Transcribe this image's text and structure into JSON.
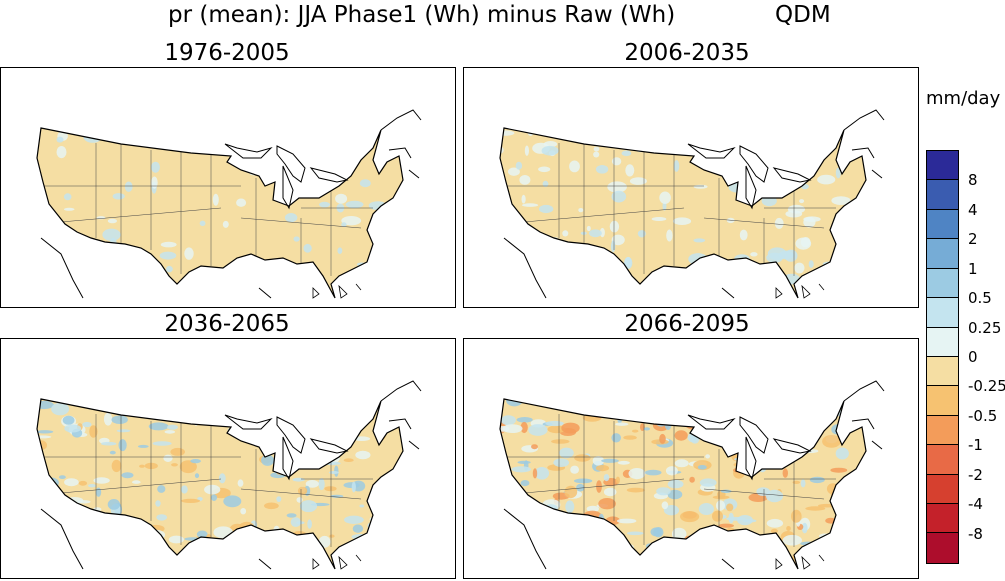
{
  "title": {
    "main": "pr (mean): JJA Phase1 (Wh) minus Raw (Wh)",
    "method": "QDM"
  },
  "panels": [
    {
      "label": "1976-2005",
      "level": 0
    },
    {
      "label": "2006-2035",
      "level": 1
    },
    {
      "label": "2036-2065",
      "level": 2
    },
    {
      "label": "2066-2095",
      "level": 3
    }
  ],
  "colorbar": {
    "units": "mm/day",
    "labels": [
      "8",
      "4",
      "2",
      "1",
      "0.5",
      "0.25",
      "0",
      "-0.25",
      "-0.5",
      "-1",
      "-2",
      "-4",
      "-8"
    ],
    "colors": [
      "#2b2a98",
      "#3a5cb0",
      "#4f84c4",
      "#76acd6",
      "#9ccbe3",
      "#c4e4ef",
      "#e6f4f3",
      "#f5dea3",
      "#f6c271",
      "#f39c5a",
      "#e86a46",
      "#d6402f",
      "#c4212a",
      "#ad0d2c"
    ]
  }
}
